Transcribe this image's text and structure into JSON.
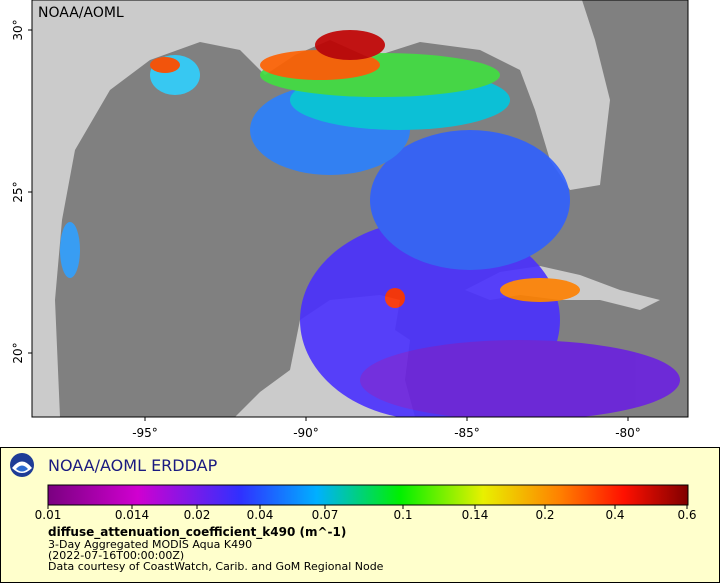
{
  "header": {
    "title": "NOAA/AOML"
  },
  "axes": {
    "lat_ticks": [
      "30°",
      "25°",
      "20°"
    ],
    "lon_ticks": [
      "-95°",
      "-90°",
      "-85°",
      "-80°"
    ]
  },
  "legend": {
    "title": "NOAA/AOML ERDDAP",
    "colorbar_labels": [
      "0.01",
      "0.014",
      "0.02",
      "0.04",
      "0.07",
      "0.1",
      "0.14",
      "0.2",
      "0.4",
      "0.6"
    ],
    "variable": "diffuse_attenuation_coefficient_k490 (m^-1)",
    "dataset": "3-Day Aggregated MODIS Aqua K490",
    "time": "(2022-07-16T00:00:00Z)",
    "credit": "Data courtesy of CoastWatch, Carib. and GoM Regional Node"
  }
}
